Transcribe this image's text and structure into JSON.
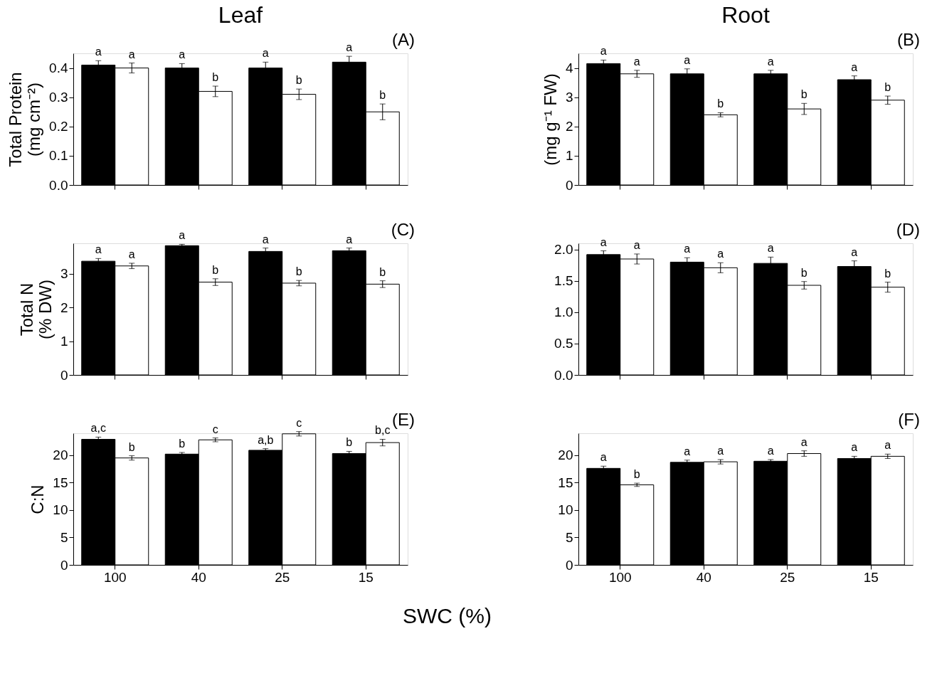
{
  "chart_data": [
    {
      "type": "bar",
      "title": "Leaf",
      "ylabel": "Total Protein\n(mg cm⁻²)",
      "categories": [
        "100",
        "40",
        "25",
        "15"
      ],
      "tick_labels": "y",
      "legend": false,
      "grid": false,
      "ylim": [
        0,
        0.45
      ],
      "yticks": [
        {
          "value": 0,
          "label": "0.0"
        },
        0.1,
        0.2,
        0.3,
        0.4
      ],
      "series": [
        {
          "color": "#000000",
          "values": [
            0.41,
            0.4,
            0.4,
            0.42
          ],
          "errors": [
            0.015,
            0.015,
            0.02,
            0.02
          ],
          "value_labels": [
            "a",
            "a",
            "a",
            "a"
          ]
        },
        {
          "color": "#ffffff",
          "values": [
            0.4,
            0.32,
            0.31,
            0.25
          ],
          "errors": [
            0.017,
            0.018,
            0.018,
            0.027
          ],
          "value_labels": [
            "a",
            "b",
            "b",
            "b"
          ]
        }
      ],
      "annotations": [
        "(A)"
      ]
    },
    {
      "type": "bar",
      "title": "Root",
      "ylabel": "(mg g⁻¹ FW)",
      "categories": [
        "100",
        "40",
        "25",
        "15"
      ],
      "tick_labels": "y",
      "legend": false,
      "grid": false,
      "ylim": [
        0,
        4.5
      ],
      "yticks": [
        0,
        1,
        2,
        3,
        4
      ],
      "series": [
        {
          "color": "#000000",
          "values": [
            4.15,
            3.8,
            3.8,
            3.6
          ],
          "errors": [
            0.12,
            0.17,
            0.12,
            0.13
          ],
          "value_labels": [
            "a",
            "a",
            "a",
            "a"
          ]
        },
        {
          "color": "#ffffff",
          "values": [
            3.8,
            2.4,
            2.6,
            2.9
          ],
          "errors": [
            0.12,
            0.07,
            0.19,
            0.14
          ],
          "value_labels": [
            "a",
            "b",
            "b",
            "b"
          ]
        }
      ],
      "annotations": [
        "(B)"
      ]
    },
    {
      "type": "bar",
      "ylabel": "Total N\n(% DW)",
      "categories": [
        "100",
        "40",
        "25",
        "15"
      ],
      "tick_labels": "y",
      "legend": false,
      "grid": false,
      "ylim": [
        0,
        3.9
      ],
      "yticks": [
        0,
        1,
        2,
        3
      ],
      "series": [
        {
          "color": "#000000",
          "values": [
            3.37,
            3.83,
            3.66,
            3.68
          ],
          "errors": [
            0.08,
            0.04,
            0.1,
            0.08
          ],
          "value_labels": [
            "a",
            "a",
            "a",
            "a"
          ]
        },
        {
          "color": "#ffffff",
          "values": [
            3.23,
            2.75,
            2.72,
            2.69
          ],
          "errors": [
            0.08,
            0.1,
            0.08,
            0.1
          ],
          "value_labels": [
            "a",
            "b",
            "b",
            "b"
          ]
        }
      ],
      "annotations": [
        "(C)"
      ]
    },
    {
      "type": "bar",
      "categories": [
        "100",
        "40",
        "25",
        "15"
      ],
      "tick_labels": "y",
      "legend": false,
      "grid": false,
      "ylim": [
        0,
        2.1
      ],
      "yticks": [
        {
          "value": 0,
          "label": "0.0"
        },
        0.5,
        {
          "value": 1,
          "label": "1.0"
        },
        1.5,
        {
          "value": 2,
          "label": "2.0"
        }
      ],
      "series": [
        {
          "color": "#000000",
          "values": [
            1.92,
            1.8,
            1.78,
            1.73
          ],
          "errors": [
            0.06,
            0.07,
            0.1,
            0.09
          ],
          "value_labels": [
            "a",
            "a",
            "a",
            "a"
          ]
        },
        {
          "color": "#ffffff",
          "values": [
            1.85,
            1.71,
            1.43,
            1.4
          ],
          "errors": [
            0.08,
            0.08,
            0.06,
            0.08
          ],
          "value_labels": [
            "a",
            "a",
            "b",
            "b"
          ]
        }
      ],
      "annotations": [
        "(D)"
      ]
    },
    {
      "type": "bar",
      "ylabel": "C:N",
      "xlabel": "SWC (%)",
      "categories": [
        "100",
        "40",
        "25",
        "15"
      ],
      "legend": false,
      "grid": false,
      "ylim": [
        0,
        24
      ],
      "yticks": [
        0,
        5,
        10,
        15,
        20
      ],
      "series": [
        {
          "color": "#000000",
          "values": [
            22.9,
            20.2,
            20.9,
            20.3
          ],
          "errors": [
            0.4,
            0.3,
            0.3,
            0.4
          ],
          "value_labels": [
            "a,c",
            "b",
            "a,b",
            "b"
          ]
        },
        {
          "color": "#ffffff",
          "values": [
            19.5,
            22.8,
            23.9,
            22.3
          ],
          "errors": [
            0.4,
            0.35,
            0.4,
            0.6
          ],
          "value_labels": [
            "b",
            "c",
            "c",
            "b,c"
          ]
        }
      ],
      "annotations": [
        "(E)"
      ]
    },
    {
      "type": "bar",
      "categories": [
        "100",
        "40",
        "25",
        "15"
      ],
      "legend": false,
      "grid": false,
      "ylim": [
        0,
        24
      ],
      "yticks": [
        0,
        5,
        10,
        15,
        20
      ],
      "series": [
        {
          "color": "#000000",
          "values": [
            17.6,
            18.7,
            18.9,
            19.4
          ],
          "errors": [
            0.4,
            0.4,
            0.3,
            0.4
          ],
          "value_labels": [
            "a",
            "a",
            "a",
            "a"
          ]
        },
        {
          "color": "#ffffff",
          "values": [
            14.6,
            18.8,
            20.3,
            19.8
          ],
          "errors": [
            0.3,
            0.4,
            0.5,
            0.4
          ],
          "value_labels": [
            "b",
            "a",
            "a",
            "a"
          ]
        }
      ],
      "annotations": [
        "(F)"
      ]
    }
  ]
}
